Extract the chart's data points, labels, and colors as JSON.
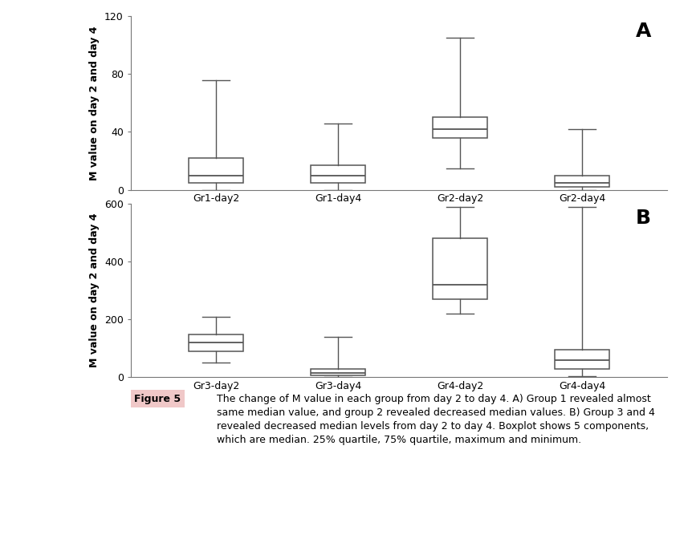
{
  "panel_A": {
    "label": "A",
    "ylabel": "M value on day 2 and day 4",
    "ylim": [
      0,
      120
    ],
    "yticks": [
      0,
      40,
      80,
      120
    ],
    "categories": [
      "Gr1-day2",
      "Gr1-day4",
      "Gr2-day2",
      "Gr2-day4"
    ],
    "boxes": [
      {
        "med": 10,
        "q1": 5,
        "q3": 22,
        "whislo": 0,
        "whishi": 76
      },
      {
        "med": 10,
        "q1": 5,
        "q3": 17,
        "whislo": 0,
        "whishi": 46
      },
      {
        "med": 42,
        "q1": 36,
        "q3": 50,
        "whislo": 15,
        "whishi": 105
      },
      {
        "med": 5,
        "q1": 2,
        "q3": 10,
        "whislo": 0,
        "whishi": 42
      }
    ]
  },
  "panel_B": {
    "label": "B",
    "ylabel": "M value on day 2 and day 4",
    "ylim": [
      0,
      600
    ],
    "yticks": [
      0,
      200,
      400,
      600
    ],
    "categories": [
      "Gr3-day2",
      "Gr3-day4",
      "Gr4-day2",
      "Gr4-day4"
    ],
    "boxes": [
      {
        "med": 120,
        "q1": 90,
        "q3": 148,
        "whislo": 50,
        "whishi": 210
      },
      {
        "med": 15,
        "q1": 8,
        "q3": 28,
        "whislo": 0,
        "whishi": 140
      },
      {
        "med": 320,
        "q1": 270,
        "q3": 480,
        "whislo": 220,
        "whishi": 590
      },
      {
        "med": 60,
        "q1": 30,
        "q3": 95,
        "whislo": 5,
        "whishi": 590
      }
    ]
  },
  "caption_label": "Figure 5",
  "caption_text": "The change of M value in each group from day 2 to day 4. A) Group 1 revealed almost\nsame median value, and group 2 revealed decreased median values. B) Group 3 and 4\nrevealed decreased median levels from day 2 to day 4. Boxplot shows 5 components,\nwhich are median. 25% quartile, 75% quartile, maximum and minimum.",
  "box_facecolor": "#ffffff",
  "box_edgecolor": "#555555",
  "median_color": "#555555",
  "whisker_color": "#555555",
  "cap_color": "#555555",
  "background_color": "#ffffff",
  "panel_label_fontsize": 18,
  "tick_fontsize": 9,
  "ylabel_fontsize": 9,
  "caption_fontsize": 9,
  "caption_label_fontsize": 9
}
